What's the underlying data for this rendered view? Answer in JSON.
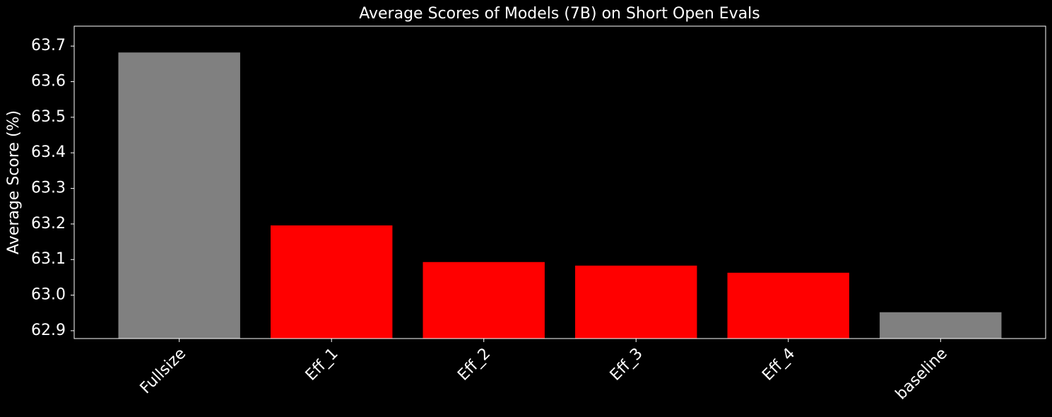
{
  "chart_data": {
    "type": "bar",
    "title": "Average Scores of Models (7B) on Short Open Evals",
    "y_label": "Average Score (%)",
    "categories": [
      "Fullsize",
      "Eff_1",
      "Eff_2",
      "Eff_3",
      "Eff_4",
      "baseline"
    ],
    "values": [
      63.682,
      63.196,
      63.093,
      63.083,
      63.063,
      62.952
    ],
    "colors": [
      "#808080",
      "#ff0000",
      "#ff0000",
      "#ff0000",
      "#ff0000",
      "#808080"
    ],
    "ylim": [
      62.878,
      63.756
    ],
    "yticks": [
      62.9,
      {
        "value": 63,
        "label": "63.0"
      },
      63.1,
      63.2,
      63.3,
      63.4,
      63.5,
      63.6,
      63.7
    ],
    "grid": false
  }
}
